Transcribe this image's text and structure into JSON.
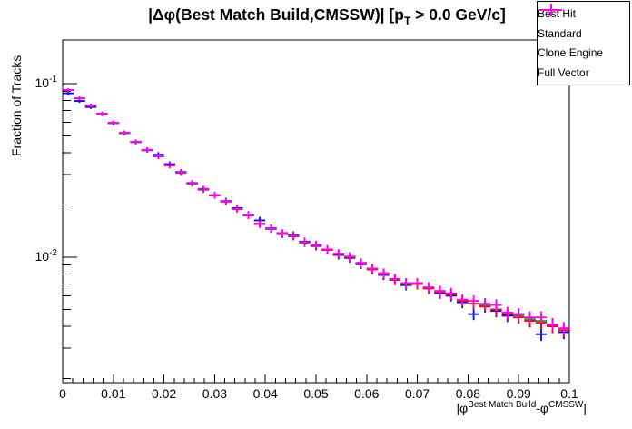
{
  "title": {
    "pre": "|Δφ(Best Match Build,CMSSW)| [p",
    "sub": "T",
    "post": " > 0.0 GeV/c]"
  },
  "y_axis": {
    "label": "Fraction of Tracks"
  },
  "x_axis": {
    "label_parts": {
      "p1": "|φ",
      "sup1": "Best Match Build",
      "p2": "-φ",
      "sup2": "CMSSW",
      "p3": "|"
    }
  },
  "colors": {
    "frame": "#000000",
    "background": "#ffffff"
  },
  "chart_data": {
    "type": "scatter",
    "subtype": "histogram-errorbars",
    "title": "|Δφ(Best Match Build,CMSSW)| [p_T > 0.0 GeV/c]",
    "xlabel": "|φ^{Best Match Build}-φ^{CMSSW}|",
    "ylabel": "Fraction of Tracks",
    "yscale": "log",
    "grid": false,
    "legend_position": "top-right",
    "xlim": [
      0,
      0.1
    ],
    "ylim": [
      0.0019,
      0.178
    ],
    "n_bins": 45,
    "bin_width": 0.0022222,
    "x_minor_step": 0.002,
    "rel_err_base": 0.022,
    "rel_err_slope": 0.0015,
    "x_ticks": [
      {
        "v": 0.0,
        "label": "0"
      },
      {
        "v": 0.01,
        "label": "0.01"
      },
      {
        "v": 0.02,
        "label": "0.02"
      },
      {
        "v": 0.03,
        "label": "0.03"
      },
      {
        "v": 0.04,
        "label": "0.04"
      },
      {
        "v": 0.05,
        "label": "0.05"
      },
      {
        "v": 0.06,
        "label": "0.06"
      },
      {
        "v": 0.07,
        "label": "0.07"
      },
      {
        "v": 0.08,
        "label": "0.08"
      },
      {
        "v": 0.09,
        "label": "0.09"
      },
      {
        "v": 0.1,
        "label": "0.1"
      }
    ],
    "y_ticks": [
      {
        "v": 0.1,
        "base": "10",
        "exp": "-1"
      },
      {
        "v": 0.01,
        "base": "10",
        "exp": "-2"
      }
    ],
    "series": [
      {
        "name": "Best Hit",
        "color": "#0000ff",
        "values": [
          0.088,
          0.0795,
          0.0733,
          0.0668,
          0.0592,
          0.0518,
          0.046,
          0.0413,
          0.039,
          0.0344,
          0.031,
          0.0268,
          0.0245,
          0.0228,
          0.0211,
          0.0192,
          0.0176,
          0.0163,
          0.0147,
          0.0136,
          0.0134,
          0.0123,
          0.0116,
          0.0111,
          0.0103,
          0.0099,
          0.0091,
          0.0086,
          0.0079,
          0.0075,
          0.0069,
          0.0071,
          0.0067,
          0.0062,
          0.006,
          0.0055,
          0.0047,
          0.0052,
          0.0049,
          0.0046,
          0.0047,
          0.0043,
          0.0036,
          0.0041,
          0.0037
        ]
      },
      {
        "name": "Standard",
        "color": "#00b300",
        "values": [
          0.0918,
          0.0822,
          0.0746,
          0.067,
          0.0594,
          0.052,
          0.0461,
          0.0414,
          0.038,
          0.0337,
          0.0306,
          0.0265,
          0.0246,
          0.0227,
          0.0209,
          0.0189,
          0.0174,
          0.0155,
          0.0145,
          0.0137,
          0.0132,
          0.0121,
          0.0117,
          0.011,
          0.0104,
          0.01,
          0.0092,
          0.0085,
          0.008,
          0.0074,
          0.007,
          0.007,
          0.0066,
          0.0063,
          0.0061,
          0.0056,
          0.0054,
          0.0053,
          0.005,
          0.0047,
          0.0046,
          0.0044,
          0.0043,
          0.004,
          0.0038
        ]
      },
      {
        "name": "Clone Engine",
        "color": "#ff0000",
        "values": [
          0.0919,
          0.0823,
          0.0747,
          0.0671,
          0.0595,
          0.0521,
          0.0462,
          0.0415,
          0.0381,
          0.0338,
          0.0307,
          0.0266,
          0.0247,
          0.0227,
          0.0209,
          0.019,
          0.0174,
          0.0156,
          0.0146,
          0.0137,
          0.0132,
          0.0122,
          0.0117,
          0.011,
          0.0104,
          0.01,
          0.0092,
          0.0085,
          0.008,
          0.0074,
          0.0071,
          0.007,
          0.0066,
          0.0063,
          0.0061,
          0.0056,
          0.0054,
          0.0052,
          0.005,
          0.0047,
          0.0045,
          0.0043,
          0.0042,
          0.004,
          0.0038
        ]
      },
      {
        "name": "Full Vector",
        "color": "#ff00ff",
        "values": [
          0.0921,
          0.0825,
          0.0749,
          0.0672,
          0.0596,
          0.0522,
          0.0463,
          0.0416,
          0.0382,
          0.0339,
          0.0308,
          0.0267,
          0.0248,
          0.0228,
          0.021,
          0.019,
          0.0175,
          0.0155,
          0.0146,
          0.0138,
          0.0133,
          0.0122,
          0.0118,
          0.0111,
          0.0105,
          0.0101,
          0.0093,
          0.0086,
          0.0081,
          0.0075,
          0.0071,
          0.0071,
          0.0067,
          0.0064,
          0.0062,
          0.0057,
          0.0056,
          0.0054,
          0.0053,
          0.0048,
          0.0047,
          0.0045,
          0.0045,
          0.0041,
          0.0039
        ]
      }
    ]
  }
}
